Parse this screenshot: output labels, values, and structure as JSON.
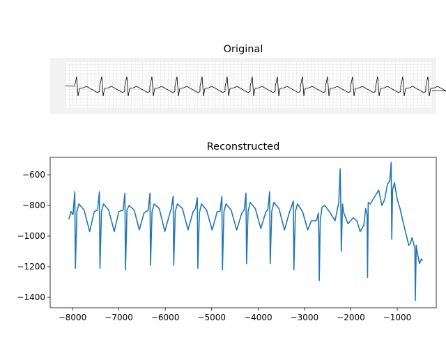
{
  "chart_data": [
    {
      "type": "image",
      "title": "Original"
    },
    {
      "type": "line",
      "title": "Reconstructed",
      "color": "#1f77b4",
      "xlim": [
        -8481,
        -159
      ],
      "ylim": [
        -1468,
        -486
      ],
      "xticks": [
        {
          "value": -8000,
          "label": "−8000"
        },
        {
          "value": -7000,
          "label": "−7000"
        },
        {
          "value": -6000,
          "label": "−6000"
        },
        {
          "value": -5000,
          "label": "−5000"
        },
        {
          "value": -4000,
          "label": "−4000"
        },
        {
          "value": -3000,
          "label": "−3000"
        },
        {
          "value": -2000,
          "label": "−2000"
        },
        {
          "value": -1000,
          "label": "−1000"
        }
      ],
      "yticks": [
        {
          "value": -1400,
          "label": "−1400"
        },
        {
          "value": -1200,
          "label": "−1200"
        },
        {
          "value": -1000,
          "label": "−1000"
        },
        {
          "value": -800,
          "label": "−800"
        },
        {
          "value": -600,
          "label": "−600"
        }
      ],
      "x": [
        -8080,
        -8030,
        -7990,
        -7950,
        -7938,
        -7905,
        -7860,
        -7750,
        -7630,
        -7530,
        -7460,
        -7420,
        -7408,
        -7375,
        -7330,
        -7220,
        -7100,
        -7000,
        -6910,
        -6870,
        -6858,
        -6825,
        -6780,
        -6670,
        -6560,
        -6460,
        -6370,
        -6330,
        -6318,
        -6285,
        -6240,
        -6130,
        -6010,
        -5900,
        -5870,
        -5830,
        -5818,
        -5785,
        -5740,
        -5630,
        -5510,
        -5400,
        -5350,
        -5310,
        -5298,
        -5265,
        -5220,
        -5110,
        -4990,
        -4880,
        -4820,
        -4780,
        -4768,
        -4735,
        -4690,
        -4580,
        -4460,
        -4350,
        -4300,
        -4260,
        -4248,
        -4215,
        -4170,
        -4060,
        -3940,
        -3830,
        -3790,
        -3750,
        -3738,
        -3705,
        -3660,
        -3550,
        -3430,
        -3320,
        -3280,
        -3240,
        -3228,
        -3195,
        -3150,
        -3040,
        -2930,
        -2850,
        -2740,
        -2700,
        -2690,
        -2680,
        -2660,
        -2620,
        -2560,
        -2440,
        -2340,
        -2260,
        -2230,
        -2218,
        -2205,
        -2180,
        -2150,
        -2060,
        -1950,
        -1870,
        -1800,
        -1720,
        -1680,
        -1650,
        -1640,
        -1625,
        -1580,
        -1480,
        -1400,
        -1330,
        -1270,
        -1210,
        -1160,
        -1130,
        -1118,
        -1100,
        -1060,
        -1000,
        -940,
        -880,
        -800,
        -750,
        -720,
        -680,
        -620,
        -610,
        -590,
        -560,
        -520,
        -480,
        -450
      ],
      "values": [
        -890,
        -840,
        -860,
        -710,
        -1210,
        -840,
        -790,
        -830,
        -970,
        -840,
        -830,
        -710,
        -1210,
        -840,
        -790,
        -830,
        -970,
        -840,
        -830,
        -720,
        -1220,
        -830,
        -800,
        -830,
        -960,
        -850,
        -830,
        -720,
        -1190,
        -840,
        -790,
        -820,
        -970,
        -850,
        -820,
        -740,
        -1190,
        -840,
        -790,
        -820,
        -960,
        -840,
        -820,
        -750,
        -1210,
        -850,
        -790,
        -830,
        -960,
        -840,
        -840,
        -740,
        -1220,
        -840,
        -790,
        -830,
        -960,
        -850,
        -830,
        -720,
        -1180,
        -840,
        -780,
        -820,
        -950,
        -840,
        -830,
        -710,
        -1180,
        -840,
        -780,
        -820,
        -960,
        -840,
        -810,
        -770,
        -1220,
        -840,
        -790,
        -840,
        -960,
        -900,
        -900,
        -850,
        -1000,
        -1290,
        -900,
        -810,
        -800,
        -850,
        -900,
        -780,
        -560,
        -750,
        -1100,
        -790,
        -850,
        -920,
        -880,
        -900,
        -970,
        -930,
        -820,
        -860,
        -1270,
        -780,
        -790,
        -740,
        -700,
        -800,
        -760,
        -660,
        -640,
        -520,
        -1020,
        -700,
        -650,
        -760,
        -820,
        -900,
        -1000,
        -1060,
        -1050,
        -1010,
        -1080,
        -1420,
        -1060,
        -1120,
        -1180,
        -1150,
        -1160
      ]
    }
  ]
}
